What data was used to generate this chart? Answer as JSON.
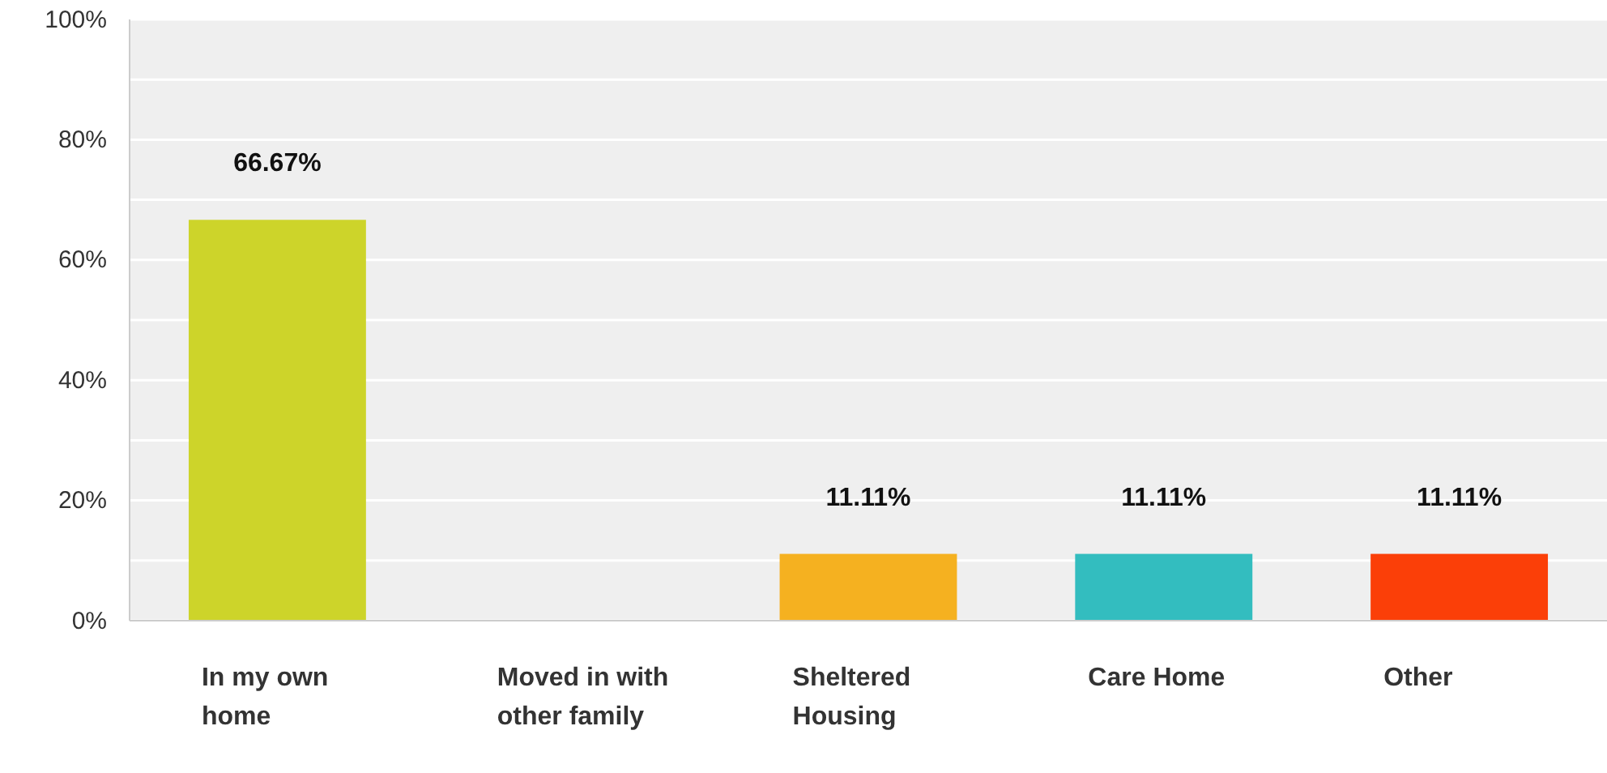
{
  "chart_data": {
    "type": "bar",
    "categories": [
      "In my own home",
      "Moved in with other family",
      "Sheltered Housing",
      "Care Home",
      "Other"
    ],
    "values": [
      66.67,
      0,
      11.11,
      11.11,
      11.11
    ],
    "colors": [
      "#cdd42a",
      "#999999",
      "#f5b120",
      "#33bdbf",
      "#fb3f08"
    ],
    "value_labels": [
      "66.67%",
      null,
      "11.11%",
      "11.11%",
      "11.11%"
    ],
    "ylim": [
      0,
      100
    ],
    "yticks": [
      {
        "value": 0,
        "label": "0%"
      },
      {
        "value": 10,
        "label": null
      },
      {
        "value": 20,
        "label": "20%"
      },
      {
        "value": 30,
        "label": null
      },
      {
        "value": 40,
        "label": "40%"
      },
      {
        "value": 50,
        "label": null
      },
      {
        "value": 60,
        "label": "60%"
      },
      {
        "value": 70,
        "label": null
      },
      {
        "value": 80,
        "label": "80%"
      },
      {
        "value": 90,
        "label": null
      },
      {
        "value": 100,
        "label": "100%"
      }
    ],
    "grid": true
  }
}
